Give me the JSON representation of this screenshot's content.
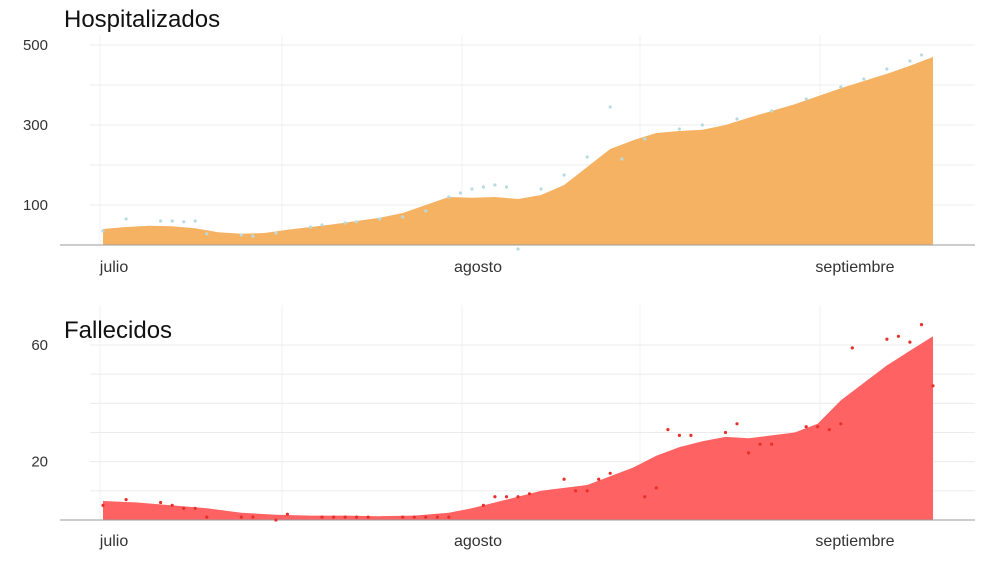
{
  "chart_data": [
    {
      "type": "area",
      "title": "Hospitalizados",
      "xlabel": "",
      "ylabel": "",
      "ylim": [
        0,
        500
      ],
      "yticks": [
        100,
        300,
        500
      ],
      "xticks": [
        {
          "x": 1,
          "label": "julio"
        },
        {
          "x": 32,
          "label": "agosto"
        },
        {
          "x": 63,
          "label": "septiembre"
        }
      ],
      "xlim": [
        -1,
        74
      ],
      "colors": {
        "area": "#f6b263",
        "dots": "#b8dbe0"
      },
      "smoothed": [
        [
          0,
          40
        ],
        [
          2,
          45
        ],
        [
          4,
          48
        ],
        [
          6,
          47
        ],
        [
          8,
          42
        ],
        [
          10,
          32
        ],
        [
          12,
          28
        ],
        [
          14,
          30
        ],
        [
          16,
          38
        ],
        [
          18,
          45
        ],
        [
          20,
          52
        ],
        [
          22,
          60
        ],
        [
          24,
          68
        ],
        [
          26,
          80
        ],
        [
          28,
          100
        ],
        [
          30,
          120
        ],
        [
          32,
          118
        ],
        [
          34,
          120
        ],
        [
          36,
          115
        ],
        [
          38,
          125
        ],
        [
          40,
          150
        ],
        [
          42,
          195
        ],
        [
          44,
          240
        ],
        [
          46,
          262
        ],
        [
          48,
          280
        ],
        [
          50,
          285
        ],
        [
          52,
          288
        ],
        [
          54,
          300
        ],
        [
          56,
          318
        ],
        [
          58,
          335
        ],
        [
          60,
          352
        ],
        [
          62,
          372
        ],
        [
          64,
          392
        ],
        [
          66,
          410
        ],
        [
          68,
          428
        ],
        [
          70,
          448
        ],
        [
          72,
          470
        ]
      ],
      "daily": [
        [
          0,
          35
        ],
        [
          2,
          65
        ],
        [
          5,
          60
        ],
        [
          6,
          60
        ],
        [
          7,
          58
        ],
        [
          8,
          60
        ],
        [
          9,
          28
        ],
        [
          12,
          25
        ],
        [
          13,
          22
        ],
        [
          15,
          30
        ],
        [
          18,
          45
        ],
        [
          19,
          50
        ],
        [
          21,
          55
        ],
        [
          22,
          58
        ],
        [
          24,
          65
        ],
        [
          26,
          70
        ],
        [
          28,
          85
        ],
        [
          30,
          120
        ],
        [
          31,
          130
        ],
        [
          32,
          140
        ],
        [
          33,
          145
        ],
        [
          34,
          150
        ],
        [
          35,
          145
        ],
        [
          36,
          -10
        ],
        [
          38,
          140
        ],
        [
          40,
          175
        ],
        [
          42,
          220
        ],
        [
          44,
          345
        ],
        [
          45,
          215
        ],
        [
          47,
          265
        ],
        [
          50,
          290
        ],
        [
          52,
          300
        ],
        [
          55,
          315
        ],
        [
          58,
          335
        ],
        [
          61,
          365
        ],
        [
          64,
          395
        ],
        [
          66,
          415
        ],
        [
          68,
          440
        ],
        [
          70,
          460
        ],
        [
          71,
          475
        ]
      ]
    },
    {
      "type": "area",
      "title": "Fallecidos",
      "xlabel": "",
      "ylabel": "",
      "ylim": [
        0,
        70
      ],
      "yticks": [
        20,
        60
      ],
      "xticks": [
        {
          "x": 1,
          "label": "julio"
        },
        {
          "x": 32,
          "label": "agosto"
        },
        {
          "x": 63,
          "label": "septiembre"
        }
      ],
      "xlim": [
        -1,
        74
      ],
      "colors": {
        "area": "#ff6262",
        "dots": "#e8302b"
      },
      "smoothed": [
        [
          0,
          6.5
        ],
        [
          3,
          6
        ],
        [
          6,
          5
        ],
        [
          9,
          4
        ],
        [
          12,
          2.5
        ],
        [
          15,
          1.8
        ],
        [
          18,
          1.5
        ],
        [
          21,
          1.5
        ],
        [
          24,
          1.3
        ],
        [
          27,
          1.5
        ],
        [
          30,
          2.5
        ],
        [
          32,
          4
        ],
        [
          34,
          6
        ],
        [
          36,
          8
        ],
        [
          38,
          10
        ],
        [
          40,
          11
        ],
        [
          42,
          12
        ],
        [
          44,
          15
        ],
        [
          46,
          18
        ],
        [
          48,
          22
        ],
        [
          50,
          25
        ],
        [
          52,
          27
        ],
        [
          54,
          28.5
        ],
        [
          56,
          28
        ],
        [
          58,
          29
        ],
        [
          60,
          30
        ],
        [
          62,
          33
        ],
        [
          64,
          41
        ],
        [
          66,
          47
        ],
        [
          68,
          53
        ],
        [
          70,
          58
        ],
        [
          72,
          63
        ]
      ],
      "daily": [
        [
          0,
          5
        ],
        [
          2,
          7
        ],
        [
          5,
          6
        ],
        [
          6,
          5
        ],
        [
          7,
          4
        ],
        [
          8,
          4
        ],
        [
          9,
          1
        ],
        [
          12,
          1
        ],
        [
          13,
          1
        ],
        [
          15,
          0
        ],
        [
          16,
          2
        ],
        [
          19,
          1
        ],
        [
          20,
          1
        ],
        [
          21,
          1
        ],
        [
          22,
          1
        ],
        [
          23,
          1
        ],
        [
          26,
          1
        ],
        [
          27,
          1
        ],
        [
          28,
          1
        ],
        [
          29,
          1
        ],
        [
          30,
          1
        ],
        [
          33,
          5
        ],
        [
          34,
          8
        ],
        [
          35,
          8
        ],
        [
          36,
          8
        ],
        [
          37,
          9
        ],
        [
          40,
          14
        ],
        [
          41,
          10
        ],
        [
          42,
          10
        ],
        [
          43,
          14
        ],
        [
          44,
          16
        ],
        [
          47,
          8
        ],
        [
          48,
          11
        ],
        [
          49,
          31
        ],
        [
          50,
          29
        ],
        [
          51,
          29
        ],
        [
          54,
          30
        ],
        [
          55,
          33
        ],
        [
          56,
          23
        ],
        [
          57,
          26
        ],
        [
          58,
          26
        ],
        [
          61,
          32
        ],
        [
          62,
          32
        ],
        [
          63,
          31
        ],
        [
          64,
          33
        ],
        [
          65,
          59
        ],
        [
          68,
          62
        ],
        [
          69,
          63
        ],
        [
          70,
          61
        ],
        [
          71,
          67
        ],
        [
          72,
          46
        ]
      ]
    }
  ]
}
